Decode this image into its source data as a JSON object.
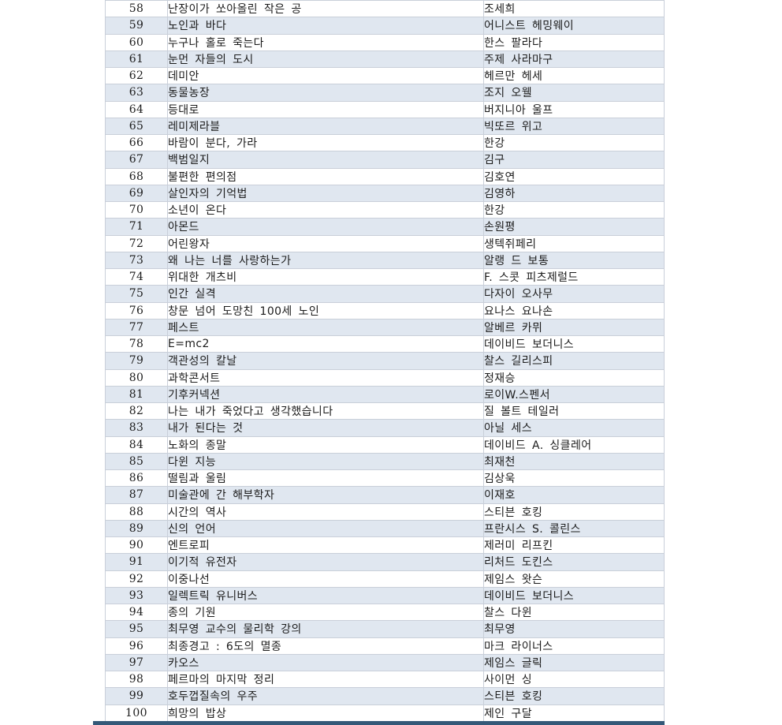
{
  "table": {
    "rows": [
      {
        "no": "58",
        "title": "난장이가 쏘아올린 작은 공",
        "author": "조세희"
      },
      {
        "no": "59",
        "title": "노인과 바다",
        "author": "어니스트 헤밍웨이"
      },
      {
        "no": "60",
        "title": "누구나 홀로 죽는다",
        "author": "한스 팔라다"
      },
      {
        "no": "61",
        "title": "눈먼 자들의 도시",
        "author": "주제 사라마구"
      },
      {
        "no": "62",
        "title": "데미안",
        "author": "헤르만 헤세"
      },
      {
        "no": "63",
        "title": "동물농장",
        "author": "조지 오웰"
      },
      {
        "no": "64",
        "title": "등대로",
        "author": "버지니아 울프"
      },
      {
        "no": "65",
        "title": "레미제라블",
        "author": "빅또르 위고"
      },
      {
        "no": "66",
        "title": "바람이 분다, 가라",
        "author": "한강"
      },
      {
        "no": "67",
        "title": "백범일지",
        "author": "김구"
      },
      {
        "no": "68",
        "title": "불편한 편의점",
        "author": "김호연"
      },
      {
        "no": "69",
        "title": "살인자의 기억법",
        "author": "김영하"
      },
      {
        "no": "70",
        "title": "소년이 온다",
        "author": "한강"
      },
      {
        "no": "71",
        "title": "아몬드",
        "author": "손원평"
      },
      {
        "no": "72",
        "title": "어린왕자",
        "author": "생텍쥐페리"
      },
      {
        "no": "73",
        "title": "왜 나는 너를 사랑하는가",
        "author": "알랭 드 보통"
      },
      {
        "no": "74",
        "title": "위대한 개츠비",
        "author": "F. 스콧 피츠제럴드"
      },
      {
        "no": "75",
        "title": "인간 실격",
        "author": "다자이 오사무"
      },
      {
        "no": "76",
        "title": "창문 넘어 도망친 100세 노인",
        "author": "요나스 요나손"
      },
      {
        "no": "77",
        "title": "페스트",
        "author": "알베르 카뮈"
      },
      {
        "no": "78",
        "title": "E=mc2",
        "author": "데이비드 보더니스"
      },
      {
        "no": "79",
        "title": "객관성의 칼날",
        "author": "찰스 길리스피"
      },
      {
        "no": "80",
        "title": "과학콘서트",
        "author": "정재승"
      },
      {
        "no": "81",
        "title": "기후커넥션",
        "author": "로이W.스펜서"
      },
      {
        "no": "82",
        "title": "나는 내가 죽었다고 생각했습니다",
        "author": "질 볼트 테일러"
      },
      {
        "no": "83",
        "title": "내가 된다는 것",
        "author": "아닐 세스"
      },
      {
        "no": "84",
        "title": "노화의 종말",
        "author": "데이비드 A. 싱클레어"
      },
      {
        "no": "85",
        "title": "다윈 지능",
        "author": "최재천"
      },
      {
        "no": "86",
        "title": "떨림과 울림",
        "author": "김상욱"
      },
      {
        "no": "87",
        "title": "미술관에 간 해부학자",
        "author": "이재호"
      },
      {
        "no": "88",
        "title": "시간의 역사",
        "author": "스티븐 호킹"
      },
      {
        "no": "89",
        "title": "신의 언어",
        "author": "프란시스 S. 콜린스"
      },
      {
        "no": "90",
        "title": "엔트로피",
        "author": "제러미 리프킨"
      },
      {
        "no": "91",
        "title": "이기적 유전자",
        "author": "리처드 도킨스"
      },
      {
        "no": "92",
        "title": "이중나선",
        "author": "제임스 왓슨"
      },
      {
        "no": "93",
        "title": "일렉트릭 유니버스",
        "author": "데이비드 보더니스"
      },
      {
        "no": "94",
        "title": "종의 기원",
        "author": "찰스 다윈"
      },
      {
        "no": "95",
        "title": "최무영 교수의 물리학 강의",
        "author": "최무영"
      },
      {
        "no": "96",
        "title": "최종경고 : 6도의 멸종",
        "author": "마크 라이너스"
      },
      {
        "no": "97",
        "title": "카오스",
        "author": "제임스 글릭"
      },
      {
        "no": "98",
        "title": "페르마의 마지막 정리",
        "author": "사이먼 싱"
      },
      {
        "no": "99",
        "title": "호두껍질속의 우주",
        "author": "스티븐 호킹"
      },
      {
        "no": "100",
        "title": "희망의 밥상",
        "author": "제인 구달"
      }
    ]
  },
  "colors": {
    "stripe_fill": "#e0e7f0",
    "grid_line": "#c9cfd9",
    "bottom_thick_border": "#345878",
    "text": "#1c1c1c"
  }
}
